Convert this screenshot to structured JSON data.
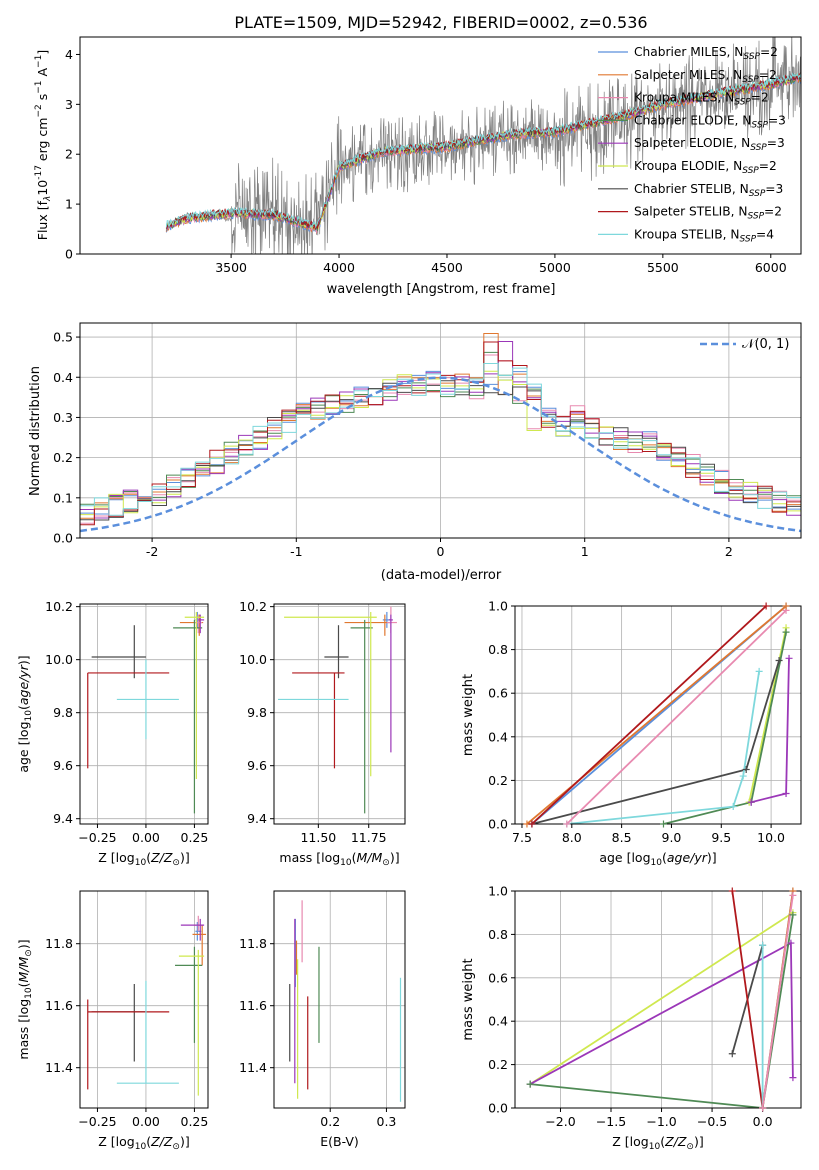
{
  "figure": {
    "title": "PLATE=1509, MJD=52942, FIBERID=0002, z=0.536"
  },
  "colors": {
    "Chabrier MILES": "#5b8fdc",
    "Salpeter MILES": "#e07830",
    "Kroupa MILES": "#e88ab0",
    "Chabrier ELODIE": "#4f8a55",
    "Salpeter ELODIE": "#9b37b8",
    "Kroupa ELODIE": "#cfe84f",
    "Chabrier STELIB": "#4a4a4a",
    "Salpeter STELIB": "#b0181c",
    "Kroupa STELIB": "#7ed8dc",
    "data": "#808080",
    "normal": "#5b8fdc"
  },
  "chart_data": [
    {
      "id": "spectrum",
      "type": "line",
      "xlabel": "wavelength [Angstrom, rest frame]",
      "ylabel_main": "Flux [f",
      "ylabel_sub": "λ",
      "ylabel_rest": "10",
      "ylabel_exp": "-17",
      "ylabel_units": " erg cm",
      "xlim": [
        2800,
        6140
      ],
      "ylim": [
        0,
        4.35
      ],
      "xticks": [
        3500,
        4000,
        4500,
        5000,
        5500,
        6000
      ],
      "yticks": [
        0,
        1,
        2,
        3,
        4
      ],
      "data_series": {
        "name": "data",
        "x_range": [
          3200,
          6140
        ],
        "profile_x": [
          3200,
          3300,
          3500,
          3700,
          3900,
          4000,
          4200,
          4500,
          4800,
          5000,
          5300,
          5500,
          5800,
          6000,
          6140
        ],
        "profile_y": [
          0.6,
          0.78,
          0.7,
          0.8,
          0.55,
          1.75,
          2.0,
          2.1,
          2.3,
          2.3,
          2.6,
          2.9,
          3.2,
          3.4,
          3.6
        ]
      },
      "model_continuum": {
        "x": [
          3200,
          3300,
          3500,
          3700,
          3900,
          4000,
          4200,
          4500,
          4800,
          5000,
          5300,
          5500,
          5800,
          6000,
          6140
        ],
        "y": [
          0.55,
          0.72,
          0.82,
          0.78,
          0.52,
          1.75,
          2.05,
          2.15,
          2.4,
          2.45,
          2.75,
          3.0,
          3.25,
          3.4,
          3.55
        ]
      },
      "legend": [
        {
          "label": "Chabrier MILES, N",
          "sub": "SSP",
          "val": "=2"
        },
        {
          "label": "Salpeter MILES, N",
          "sub": "SSP",
          "val": "=2"
        },
        {
          "label": "Kroupa MILES, N",
          "sub": "SSP",
          "val": "=2"
        },
        {
          "label": "Chabrier ELODIE, N",
          "sub": "SSP",
          "val": "=3"
        },
        {
          "label": "Salpeter ELODIE, N",
          "sub": "SSP",
          "val": "=3"
        },
        {
          "label": "Kroupa ELODIE, N",
          "sub": "SSP",
          "val": "=2"
        },
        {
          "label": "Chabrier STELIB, N",
          "sub": "SSP",
          "val": "=3"
        },
        {
          "label": "Salpeter STELIB, N",
          "sub": "SSP",
          "val": "=2"
        },
        {
          "label": "Kroupa STELIB, N",
          "sub": "SSP",
          "val": "=4"
        }
      ]
    },
    {
      "id": "residuals",
      "type": "histogram",
      "xlabel": "(data-model)/error",
      "ylabel": "Normed distribution",
      "xlim": [
        -2.5,
        2.5
      ],
      "ylim": [
        0,
        0.535
      ],
      "xticks": [
        -2,
        -1,
        0,
        1,
        2
      ],
      "yticks": [
        0.0,
        0.1,
        0.2,
        0.3,
        0.4,
        0.5
      ],
      "legend": "𝒩(0, 1)",
      "bin_width": 0.1,
      "base_hist": [
        0.03,
        0.03,
        0.04,
        0.05,
        0.06,
        0.06,
        0.07,
        0.08,
        0.09,
        0.1,
        0.11,
        0.13,
        0.15,
        0.17,
        0.19,
        0.21,
        0.23,
        0.25,
        0.27,
        0.29,
        0.31,
        0.32,
        0.33,
        0.34,
        0.35,
        0.36,
        0.37,
        0.38,
        0.38,
        0.39,
        0.38,
        0.38,
        0.37,
        0.41,
        0.39,
        0.35,
        0.32,
        0.3,
        0.28,
        0.3,
        0.27,
        0.26,
        0.25,
        0.24,
        0.24,
        0.22,
        0.2,
        0.18,
        0.16,
        0.14,
        0.12,
        0.11,
        0.1,
        0.09,
        0.08,
        0.08,
        0.07,
        0.06,
        0.06,
        0.05
      ]
    },
    {
      "id": "age_vs_Z",
      "type": "errorbar",
      "xlabel": "Z [log",
      "ylabel": "age  [log",
      "xlim": [
        -0.34,
        0.32
      ],
      "ylim": [
        9.38,
        10.21
      ],
      "xticks": [
        -0.25,
        0.0,
        0.25
      ],
      "xticklabels": [
        "−0.25",
        "0.00",
        "0.25"
      ],
      "yticks": [
        9.4,
        9.6,
        9.8,
        10.0,
        10.2
      ],
      "points": [
        {
          "s": "Chabrier MILES",
          "x": 0.265,
          "y": 10.15,
          "xe": [
            0.01,
            0.02
          ],
          "ye": [
            0.03,
            0.03
          ]
        },
        {
          "s": "Salpeter MILES",
          "x": 0.275,
          "y": 10.14,
          "xe": [
            0.1,
            0.02
          ],
          "ye": [
            0.05,
            0.03
          ]
        },
        {
          "s": "Kroupa MILES",
          "x": 0.27,
          "y": 10.14,
          "xe": [
            0.02,
            0.02
          ],
          "ye": [
            0.04,
            0.03
          ]
        },
        {
          "s": "Chabrier ELODIE",
          "x": 0.25,
          "y": 10.12,
          "xe": [
            0.11,
            0.04
          ],
          "ye": [
            0.7,
            0.03
          ]
        },
        {
          "s": "Salpeter ELODIE",
          "x": 0.28,
          "y": 10.15,
          "xe": [
            0.01,
            0.02
          ],
          "ye": [
            0.05,
            0.02
          ]
        },
        {
          "s": "Kroupa ELODIE",
          "x": 0.26,
          "y": 10.16,
          "xe": [
            0.06,
            0.04
          ],
          "ye": [
            0.61,
            0.02
          ]
        },
        {
          "s": "Chabrier STELIB",
          "x": -0.06,
          "y": 10.01,
          "xe": [
            0.22,
            0.06
          ],
          "ye": [
            0.08,
            0.12
          ]
        },
        {
          "s": "Salpeter STELIB",
          "x": -0.3,
          "y": 9.95,
          "xe": [
            0.0,
            0.42
          ],
          "ye": [
            0.36,
            0.0
          ]
        },
        {
          "s": "Kroupa STELIB",
          "x": 0.0,
          "y": 9.85,
          "xe": [
            0.15,
            0.17
          ],
          "ye": [
            0.15,
            0.15
          ]
        }
      ]
    },
    {
      "id": "age_vs_mass",
      "type": "errorbar",
      "xlabel": "mass [log",
      "ylabel": "",
      "xlim": [
        11.28,
        11.93
      ],
      "ylim": [
        9.38,
        10.21
      ],
      "xticks": [
        11.5,
        11.75
      ],
      "xticklabels": [
        "11.50",
        "11.75"
      ],
      "yticks": [
        9.4,
        9.6,
        9.8,
        10.0,
        10.2
      ],
      "points": [
        {
          "s": "Chabrier MILES",
          "x": 11.84,
          "y": 10.15,
          "xe": [
            0.02,
            0.02
          ],
          "ye": [
            0.03,
            0.03
          ]
        },
        {
          "s": "Salpeter MILES",
          "x": 11.83,
          "y": 10.14,
          "xe": [
            0.2,
            0.03
          ],
          "ye": [
            0.05,
            0.03
          ]
        },
        {
          "s": "Kroupa MILES",
          "x": 11.86,
          "y": 10.14,
          "xe": [
            0.02,
            0.03
          ],
          "ye": [
            0.04,
            0.06
          ]
        },
        {
          "s": "Chabrier ELODIE",
          "x": 11.73,
          "y": 10.12,
          "xe": [
            0.07,
            0.04
          ],
          "ye": [
            0.7,
            0.03
          ]
        },
        {
          "s": "Salpeter ELODIE",
          "x": 11.86,
          "y": 10.15,
          "xe": [
            0.01,
            0.01
          ],
          "ye": [
            0.5,
            0.02
          ]
        },
        {
          "s": "Kroupa ELODIE",
          "x": 11.76,
          "y": 10.16,
          "xe": [
            0.43,
            0.03
          ],
          "ye": [
            0.6,
            0.02
          ]
        },
        {
          "s": "Chabrier STELIB",
          "x": 11.6,
          "y": 10.01,
          "xe": [
            0.07,
            0.05
          ],
          "ye": [
            0.08,
            0.12
          ]
        },
        {
          "s": "Salpeter STELIB",
          "x": 11.58,
          "y": 9.95,
          "xe": [
            0.21,
            0.05
          ],
          "ye": [
            0.36,
            0.0
          ]
        },
        {
          "s": "Kroupa STELIB",
          "x": 11.35,
          "y": 9.85,
          "xe": [
            0.05,
            0.3
          ],
          "ye": [
            0.0,
            0.0
          ]
        }
      ]
    },
    {
      "id": "weight_vs_age",
      "type": "line",
      "xlabel": "age  [log",
      "ylabel": "mass weight",
      "xlim": [
        7.43,
        10.3
      ],
      "ylim": [
        0,
        1
      ],
      "xticks": [
        7.5,
        8.0,
        8.5,
        9.0,
        9.5,
        10.0
      ],
      "xticklabels": [
        "7.5",
        "8.0",
        "8.5",
        "9.0",
        "9.5",
        "10.0"
      ],
      "yticks": [
        0.0,
        0.2,
        0.4,
        0.6,
        0.8,
        1.0
      ],
      "lines": [
        {
          "s": "Kroupa ELODIE",
          "pts": [
            [
              9.78,
              0.1
            ],
            [
              10.15,
              0.9
            ]
          ]
        },
        {
          "s": "Chabrier ELODIE",
          "pts": [
            [
              8.92,
              0.0
            ],
            [
              9.8,
              0.1
            ],
            [
              10.15,
              0.88
            ]
          ]
        },
        {
          "s": "Salpeter ELODIE",
          "pts": [
            [
              9.8,
              0.1
            ],
            [
              10.15,
              0.14
            ],
            [
              10.18,
              0.76
            ]
          ]
        },
        {
          "s": "Chabrier STELIB",
          "pts": [
            [
              7.6,
              0.0
            ],
            [
              9.75,
              0.25
            ],
            [
              10.08,
              0.75
            ]
          ]
        },
        {
          "s": "Kroupa STELIB",
          "pts": [
            [
              7.95,
              0.0
            ],
            [
              9.62,
              0.08
            ],
            [
              9.72,
              0.22
            ],
            [
              9.88,
              0.7
            ]
          ]
        },
        {
          "s": "Kroupa MILES",
          "pts": [
            [
              7.95,
              0.0
            ],
            [
              10.15,
              0.98
            ]
          ]
        },
        {
          "s": "Chabrier MILES",
          "pts": [
            [
              7.6,
              0.0
            ],
            [
              10.15,
              1.0
            ]
          ]
        },
        {
          "s": "Salpeter MILES",
          "pts": [
            [
              7.55,
              0.0
            ],
            [
              10.15,
              1.0
            ]
          ]
        },
        {
          "s": "Salpeter STELIB",
          "pts": [
            [
              7.6,
              0.0
            ],
            [
              9.95,
              1.0
            ]
          ]
        }
      ]
    },
    {
      "id": "mass_vs_Z",
      "type": "errorbar",
      "xlabel": "Z [log",
      "ylabel": "mass [log",
      "xlim": [
        -0.34,
        0.32
      ],
      "ylim": [
        11.27,
        11.97
      ],
      "xticks": [
        -0.25,
        0.0,
        0.25
      ],
      "xticklabels": [
        "−0.25",
        "0.00",
        "0.25"
      ],
      "yticks": [
        11.4,
        11.6,
        11.8
      ],
      "points": [
        {
          "s": "Chabrier MILES",
          "x": 0.265,
          "y": 11.84,
          "xe": [
            0.01,
            0.02
          ],
          "ye": [
            0.03,
            0.03
          ]
        },
        {
          "s": "Salpeter MILES",
          "x": 0.29,
          "y": 11.83,
          "xe": [
            0.05,
            0.02
          ],
          "ye": [
            0.1,
            0.03
          ]
        },
        {
          "s": "Kroupa MILES",
          "x": 0.27,
          "y": 11.86,
          "xe": [
            0.02,
            0.02
          ],
          "ye": [
            0.02,
            0.03
          ]
        },
        {
          "s": "Chabrier ELODIE",
          "x": 0.25,
          "y": 11.73,
          "xe": [
            0.1,
            0.04
          ],
          "ye": [
            0.25,
            0.06
          ]
        },
        {
          "s": "Salpeter ELODIE",
          "x": 0.28,
          "y": 11.86,
          "xe": [
            0.1,
            0.02
          ],
          "ye": [
            0.05,
            0.02
          ]
        },
        {
          "s": "Kroupa ELODIE",
          "x": 0.27,
          "y": 11.76,
          "xe": [
            0.1,
            0.03
          ],
          "ye": [
            0.45,
            0.02
          ]
        },
        {
          "s": "Chabrier STELIB",
          "x": -0.06,
          "y": 11.58,
          "xe": [
            0.22,
            0.06
          ],
          "ye": [
            0.16,
            0.09
          ]
        },
        {
          "s": "Salpeter STELIB",
          "x": -0.3,
          "y": 11.58,
          "xe": [
            0.0,
            0.42
          ],
          "ye": [
            0.25,
            0.04
          ]
        },
        {
          "s": "Kroupa STELIB",
          "x": 0.0,
          "y": 11.35,
          "xe": [
            0.15,
            0.17
          ],
          "ye": [
            0.0,
            0.33
          ]
        }
      ]
    },
    {
      "id": "mass_vs_ebv",
      "type": "errorbar",
      "xlabel": "E(B-V)",
      "ylabel": "",
      "xlim": [
        0.1,
        0.333
      ],
      "ylim": [
        11.27,
        11.97
      ],
      "xticks": [
        0.2,
        0.3
      ],
      "xticklabels": [
        "0.2",
        "0.3"
      ],
      "yticks": [
        11.4,
        11.6,
        11.8
      ],
      "points": [
        {
          "s": "Kroupa MILES",
          "x": 0.15,
          "y": 11.84,
          "ye": [
            0.1,
            0.1
          ]
        },
        {
          "s": "Chabrier MILES",
          "x": 0.138,
          "y": 11.78,
          "ye": [
            0.12,
            0.1
          ]
        },
        {
          "s": "Salpeter MILES",
          "x": 0.14,
          "y": 11.75,
          "ye": [
            0.05,
            0.06
          ]
        },
        {
          "s": "Salpeter ELODIE",
          "x": 0.137,
          "y": 11.6,
          "ye": [
            0.25,
            0.28
          ]
        },
        {
          "s": "Kroupa ELODIE",
          "x": 0.142,
          "y": 11.52,
          "ye": [
            0.22,
            0.23
          ]
        },
        {
          "s": "Chabrier STELIB",
          "x": 0.128,
          "y": 11.52,
          "ye": [
            0.1,
            0.15
          ]
        },
        {
          "s": "Salpeter STELIB",
          "x": 0.16,
          "y": 11.48,
          "ye": [
            0.15,
            0.15
          ]
        },
        {
          "s": "Chabrier ELODIE",
          "x": 0.18,
          "y": 11.64,
          "ye": [
            0.16,
            0.15
          ]
        },
        {
          "s": "Kroupa STELIB",
          "x": 0.325,
          "y": 11.49,
          "ye": [
            0.2,
            0.2
          ]
        },
        {
          "s": "Kroupa MILES",
          "x": 0.313,
          "y": 11.63,
          "ye": [
            0.0,
            0.0
          ]
        }
      ]
    },
    {
      "id": "weight_vs_Z",
      "type": "line",
      "xlabel": "Z [log",
      "ylabel": "mass weight",
      "xlim": [
        -2.45,
        0.38
      ],
      "ylim": [
        0,
        1
      ],
      "xticks": [
        -2.0,
        -1.5,
        -1.0,
        -0.5,
        0.0
      ],
      "xticklabels": [
        "−2.0",
        "−1.5",
        "−1.0",
        "−0.5",
        "0.0"
      ],
      "yticks": [
        0.0,
        0.2,
        0.4,
        0.6,
        0.8,
        1.0
      ],
      "lines": [
        {
          "s": "Kroupa ELODIE",
          "pts": [
            [
              -2.3,
              0.11
            ],
            [
              0.3,
              0.9
            ]
          ]
        },
        {
          "s": "Salpeter ELODIE",
          "pts": [
            [
              -2.3,
              0.11
            ],
            [
              0.28,
              0.76
            ],
            [
              0.3,
              0.14
            ]
          ]
        },
        {
          "s": "Chabrier ELODIE",
          "pts": [
            [
              -2.3,
              0.11
            ],
            [
              0.0,
              0.0
            ],
            [
              0.3,
              0.89
            ]
          ]
        },
        {
          "s": "Chabrier STELIB",
          "pts": [
            [
              -0.3,
              0.25
            ],
            [
              0.0,
              0.75
            ]
          ]
        },
        {
          "s": "Salpeter STELIB",
          "pts": [
            [
              -0.3,
              1.0
            ],
            [
              0.0,
              0.0
            ]
          ]
        },
        {
          "s": "Kroupa STELIB",
          "pts": [
            [
              0.0,
              0.0
            ],
            [
              0.0,
              0.75
            ]
          ]
        },
        {
          "s": "Chabrier MILES",
          "pts": [
            [
              0.0,
              0.0
            ],
            [
              0.3,
              1.0
            ]
          ]
        },
        {
          "s": "Salpeter MILES",
          "pts": [
            [
              0.0,
              0.0
            ],
            [
              0.3,
              1.0
            ]
          ]
        },
        {
          "s": "Kroupa MILES",
          "pts": [
            [
              0.0,
              0.0
            ],
            [
              0.3,
              0.98
            ]
          ]
        }
      ]
    }
  ]
}
